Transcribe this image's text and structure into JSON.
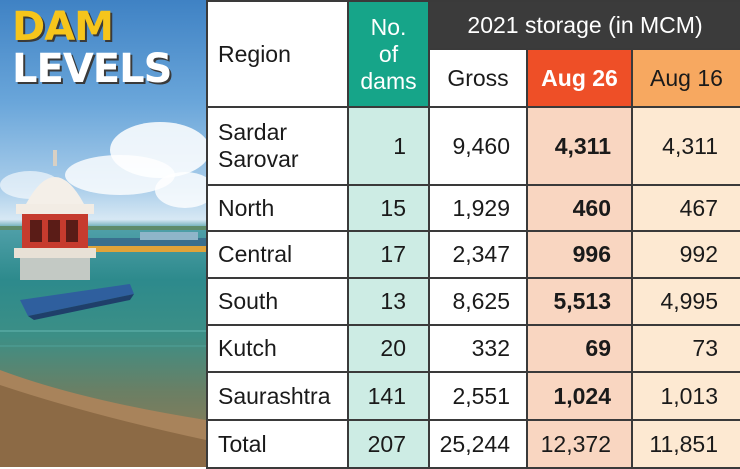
{
  "title": {
    "line1": "DAM",
    "line2": "LEVELS"
  },
  "headers": {
    "region": "Region",
    "dams_line1": "No.",
    "dams_line2": "of",
    "dams_line3": "dams",
    "storage": "2021 storage (in MCM)",
    "gross": "Gross",
    "aug26": "Aug 26",
    "aug16": "Aug 16"
  },
  "rows": [
    {
      "region_line1": "Sardar",
      "region_line2": "Sarovar",
      "dams": "1",
      "gross": "9,460",
      "aug26": "4,311",
      "aug16": "4,311"
    },
    {
      "region": "North",
      "dams": "15",
      "gross": "1,929",
      "aug26": "460",
      "aug16": "467"
    },
    {
      "region": "Central",
      "dams": "17",
      "gross": "2,347",
      "aug26": "996",
      "aug16": "992"
    },
    {
      "region": "South",
      "dams": "13",
      "gross": "8,625",
      "aug26": "5,513",
      "aug16": "4,995"
    },
    {
      "region": "Kutch",
      "dams": "20",
      "gross": "332",
      "aug26": "69",
      "aug16": "73"
    },
    {
      "region": "Saurashtra",
      "dams": "141",
      "gross": "2,551",
      "aug26": "1,024",
      "aug16": "1,013"
    }
  ],
  "total": {
    "region": "Total",
    "dams": "207",
    "gross": "25,244",
    "aug26": "12,372",
    "aug16": "11,851"
  },
  "colors": {
    "title_yellow": "#f6c51b",
    "dams_header": "#16a589",
    "storage_header": "#3b3b3b",
    "aug26_header": "#ee4f27",
    "aug16_header": "#f7a860"
  }
}
